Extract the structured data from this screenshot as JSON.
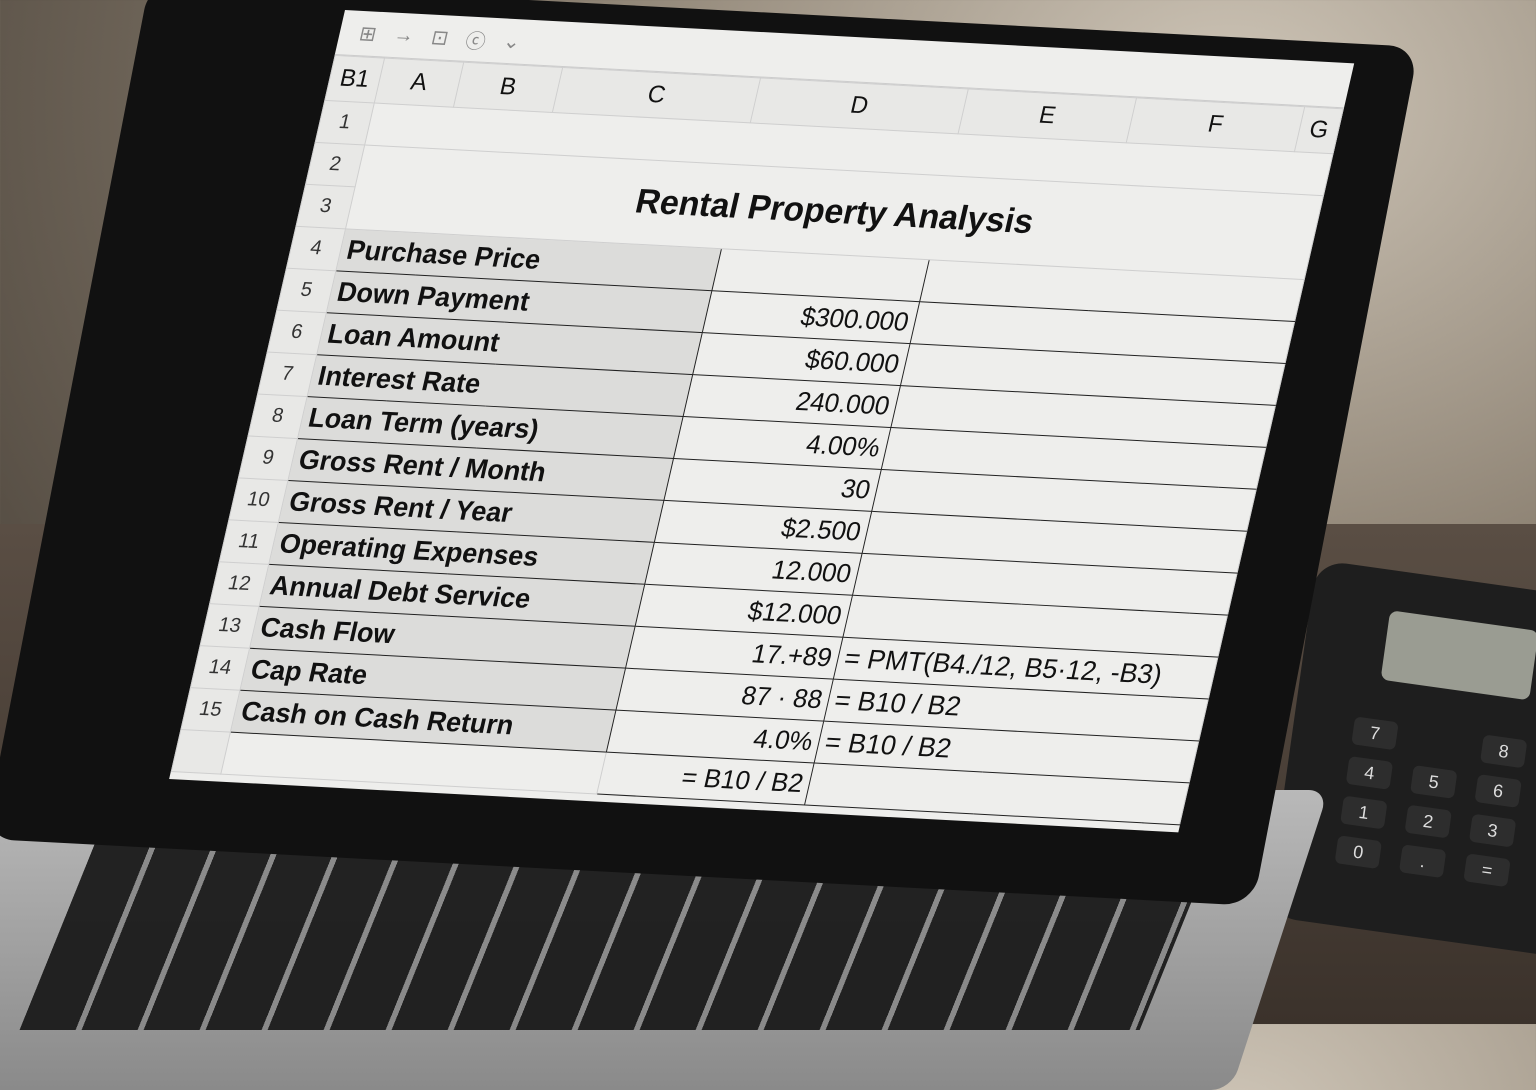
{
  "toolbar": {
    "icons": [
      "grid-icon",
      "arrow-right-icon",
      "insert-box-icon",
      "circle-c-icon",
      "chevron-down-icon"
    ],
    "arrow": "→",
    "chevron": "⌄"
  },
  "name_box": "B1",
  "columns": [
    "A",
    "B",
    "C",
    "D",
    "E",
    "F",
    "G"
  ],
  "title": "Rental Property Analysis",
  "rows": [
    {
      "n": "4",
      "label": "Purchase Price",
      "value": "",
      "formula": ""
    },
    {
      "n": "5",
      "label": "Down Payment",
      "value": "$300.000",
      "formula": ""
    },
    {
      "n": "6",
      "label": "Loan Amount",
      "value": "$60.000",
      "formula": ""
    },
    {
      "n": "7",
      "label": "Interest Rate",
      "value": "240.000",
      "formula": ""
    },
    {
      "n": "8",
      "label": "Loan Term (years)",
      "value": "4.00%",
      "formula": ""
    },
    {
      "n": "9",
      "label": "Gross Rent / Month",
      "value": "30",
      "formula": ""
    },
    {
      "n": "10",
      "label": "Gross Rent / Year",
      "value": "$2.500",
      "formula": ""
    },
    {
      "n": "11",
      "label": "Operating Expenses",
      "value": "12.000",
      "formula": ""
    },
    {
      "n": "12",
      "label": "Annual Debt Service",
      "value": "$12.000",
      "formula": ""
    },
    {
      "n": "13",
      "label": "Cash Flow",
      "value": "17.+89",
      "formula": "= PMT(B4./12, B5·12, -B3)"
    },
    {
      "n": "14",
      "label": "Cap Rate",
      "value": "87 · 88",
      "formula": "= B10 / B2"
    },
    {
      "n": "15",
      "label": "Cash on Cash Return",
      "value": "4.0%",
      "formula": "= B10 / B2"
    },
    {
      "n": "",
      "label": "",
      "value": "= B10 / B2",
      "formula": ""
    }
  ],
  "calculator_keys": [
    "7",
    "8",
    "4",
    "5",
    "6",
    "1",
    "2",
    "3",
    "0",
    ".",
    "="
  ]
}
